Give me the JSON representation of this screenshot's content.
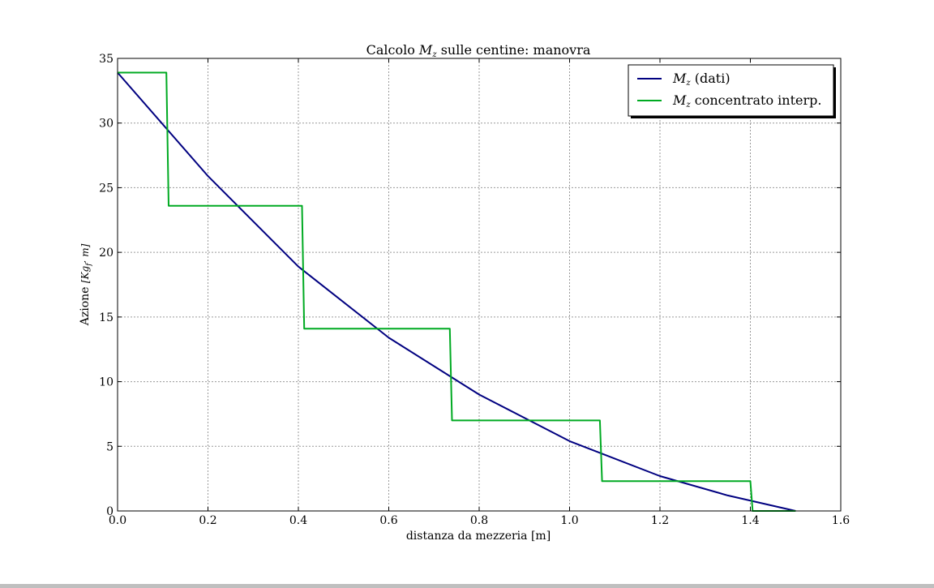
{
  "chart_data": {
    "type": "line",
    "title": "Calcolo",
    "title_math": "M",
    "title_math_sub": "z",
    "title_rest": "sulle centine: manovra",
    "xlabel": "distanza da mezzeria [m]",
    "ylabel": "Azione",
    "ylabel_unit": "[Kg",
    "ylabel_unit_sub": "f",
    "ylabel_unit_rest": "· m]",
    "xlim": [
      0.0,
      1.6
    ],
    "ylim": [
      0,
      35
    ],
    "x_ticks": [
      "0.0",
      "0.2",
      "0.4",
      "0.6",
      "0.8",
      "1.0",
      "1.2",
      "1.4",
      "1.6"
    ],
    "y_ticks": [
      "0",
      "5",
      "10",
      "15",
      "20",
      "25",
      "30",
      "35"
    ],
    "grid": true,
    "legend_position": "top-right",
    "series": [
      {
        "name": "M",
        "name_sub": "z",
        "name_rest": "(dati)",
        "color": "#000080",
        "x": [
          0.0,
          0.2,
          0.4,
          0.6,
          0.8,
          1.0,
          1.2,
          1.35,
          1.5
        ],
        "y": [
          33.9,
          25.9,
          18.9,
          13.4,
          9.0,
          5.4,
          2.7,
          1.2,
          0.0
        ]
      },
      {
        "name": "M",
        "name_sub": "z",
        "name_rest": "concentrato interp.",
        "color": "#00aa22",
        "x": [
          0.0,
          0.108,
          0.113,
          0.408,
          0.413,
          0.735,
          0.74,
          1.067,
          1.072,
          1.4,
          1.405,
          1.5
        ],
        "y": [
          33.9,
          33.9,
          23.6,
          23.6,
          14.1,
          14.1,
          7.0,
          7.0,
          2.3,
          2.3,
          0.0,
          0.0
        ]
      }
    ]
  }
}
